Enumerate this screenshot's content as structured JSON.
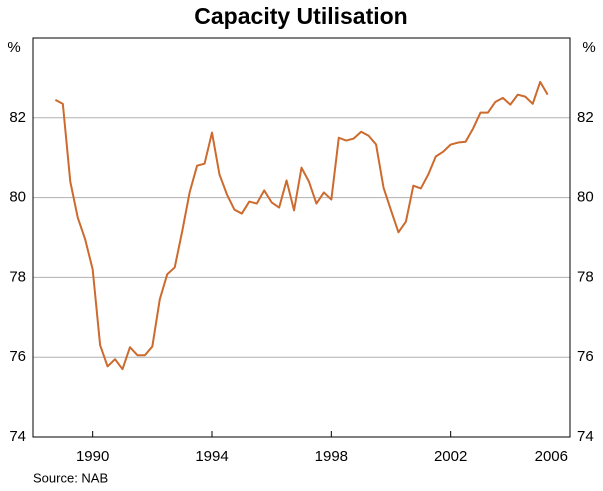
{
  "chart_data": {
    "type": "line",
    "title": "Capacity Utilisation",
    "ylabel": "%",
    "y2label": "%",
    "source": "Source: NAB",
    "x": [
      1988.75,
      1989,
      1989.25,
      1989.5,
      1989.75,
      1990,
      1990.25,
      1990.5,
      1990.75,
      1991,
      1991.25,
      1991.5,
      1991.75,
      1992,
      1992.25,
      1992.5,
      1992.75,
      1993,
      1993.25,
      1993.5,
      1993.75,
      1994,
      1994.25,
      1994.5,
      1994.75,
      1995,
      1995.25,
      1995.5,
      1995.75,
      1996,
      1996.25,
      1996.5,
      1996.75,
      1997,
      1997.25,
      1997.5,
      1997.75,
      1998,
      1998.25,
      1998.5,
      1998.75,
      1999,
      1999.25,
      1999.5,
      1999.75,
      2000,
      2000.25,
      2000.5,
      2000.75,
      2001,
      2001.25,
      2001.5,
      2001.75,
      2002,
      2002.25,
      2002.5,
      2002.75,
      2003,
      2003.25,
      2003.5,
      2003.75,
      2004,
      2004.25,
      2004.5,
      2004.75,
      2005,
      2005.25
    ],
    "series": [
      {
        "name": "Capacity utilisation",
        "color": "#cd6a2e",
        "values": [
          82.45,
          82.35,
          80.4,
          79.5,
          78.95,
          78.2,
          76.3,
          75.77,
          75.95,
          75.7,
          76.25,
          76.05,
          76.05,
          76.27,
          77.45,
          78.08,
          78.25,
          79.15,
          80.13,
          80.8,
          80.85,
          81.63,
          80.58,
          80.08,
          79.7,
          79.6,
          79.9,
          79.85,
          80.18,
          79.88,
          79.75,
          80.43,
          79.68,
          80.75,
          80.4,
          79.85,
          80.13,
          79.95,
          81.5,
          81.43,
          81.48,
          81.65,
          81.55,
          81.33,
          80.25,
          79.68,
          79.13,
          79.4,
          80.3,
          80.23,
          80.58,
          81.03,
          81.15,
          81.33,
          81.38,
          81.4,
          81.73,
          82.13,
          82.13,
          82.4,
          82.5,
          82.33,
          82.58,
          82.53,
          82.35,
          82.9,
          82.58
        ]
      }
    ],
    "xlim": [
      1988,
      2006
    ],
    "xticks": [
      1990,
      1994,
      1998,
      2002,
      2006
    ],
    "ylim": [
      74,
      84
    ],
    "yticks": [
      74,
      76,
      78,
      80,
      82
    ],
    "y2lim": [
      74,
      84
    ],
    "y2ticks": [
      74,
      76,
      78,
      80,
      82
    ],
    "grid": true
  }
}
